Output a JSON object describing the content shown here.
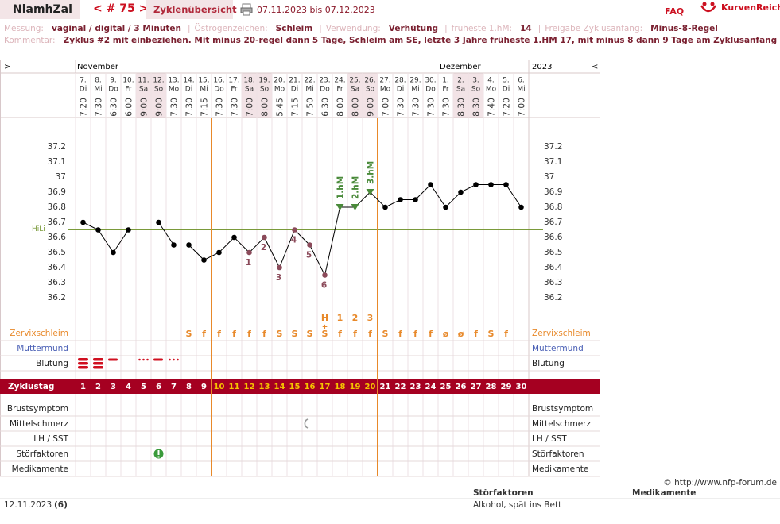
{
  "header": {
    "user": "NiamhZai",
    "cycle_nav": "< # 75 >",
    "overview": "Zyklenübersicht",
    "range": "07.11.2023 bis 07.12.2023",
    "faq": "FAQ",
    "brand": "KurvenReich"
  },
  "info": {
    "fields": [
      {
        "label": "Messung:",
        "value": "vaginal / digital / 3 Minuten"
      },
      {
        "label": "Östrogenzeichen:",
        "value": "Schleim"
      },
      {
        "label": "Verwendung:",
        "value": "Verhütung"
      },
      {
        "label": "früheste 1.hM:",
        "value": "14"
      },
      {
        "label": "Freigabe Zyklusanfang:",
        "value": "Minus-8-Regel"
      }
    ],
    "separator": "|",
    "comment_label": "Kommentar:",
    "comment": "Zyklus #2  mit einbeziehen. Mit minus 20-regel dann 5 Tage,  Schleim am SE, letzte 3 Jahre früheste 1.HM 17, mit minus 8 dann 9 Tage am Zyklusanfang"
  },
  "chart_data": {
    "type": "line",
    "nav_left": ">",
    "nav_right": "<",
    "months": [
      {
        "name": "November",
        "category": "7."
      },
      {
        "name": "Dezember",
        "category": "1."
      }
    ],
    "year": "2023",
    "categories": [
      "7.",
      "8.",
      "9.",
      "10.",
      "11.",
      "12.",
      "13.",
      "14.",
      "15.",
      "16.",
      "17.",
      "18.",
      "19.",
      "20.",
      "21.",
      "22.",
      "23.",
      "24.",
      "25.",
      "26.",
      "27.",
      "28.",
      "29.",
      "30.",
      "1.",
      "2.",
      "3.",
      "4.",
      "5.",
      "6."
    ],
    "weekdays": [
      "Di",
      "Mi",
      "Do",
      "Fr",
      "Sa",
      "So",
      "Mo",
      "Di",
      "Mi",
      "Do",
      "Fr",
      "Sa",
      "So",
      "Mo",
      "Di",
      "Mi",
      "Do",
      "Fr",
      "Sa",
      "So",
      "Mo",
      "Di",
      "Mi",
      "Do",
      "Fr",
      "Sa",
      "So",
      "Mo",
      "Di",
      "Mi"
    ],
    "times": [
      "7:20",
      "7:30",
      "6:30",
      "6:00",
      "9:00",
      "9:00",
      "7:30",
      "7:30",
      "7:15",
      "7:30",
      "7:30",
      "7:00",
      "8:00",
      "5:45",
      "7:15",
      "7:50",
      "6:30",
      "8:00",
      "8:00",
      "9:00",
      "7:00",
      "7:30",
      "7:30",
      "7:30",
      "7:30",
      "8:30",
      "8:30",
      "7:40",
      "7:20",
      "7:00"
    ],
    "shaded": [
      "11.",
      "12.",
      "18.",
      "19.",
      "25.",
      "26.",
      "2.",
      "3."
    ],
    "shade_color": "#f2e3e6",
    "values": [
      36.7,
      36.65,
      36.5,
      36.65,
      null,
      36.7,
      36.55,
      36.55,
      36.45,
      36.5,
      36.6,
      36.5,
      36.6,
      36.4,
      36.65,
      36.55,
      36.35,
      36.8,
      36.8,
      36.9,
      36.8,
      36.85,
      36.85,
      36.95,
      36.8,
      36.9,
      36.95,
      36.95,
      36.95,
      36.8
    ],
    "color": "#000000",
    "ylim": [
      36.0,
      37.4
    ],
    "yticks": [
      36.2,
      36.3,
      36.4,
      36.5,
      36.6,
      36.7,
      36.8,
      36.9,
      37,
      37.1,
      37.2
    ],
    "coverline": {
      "label": "HiLi",
      "value": 36.65,
      "color": "#7a9a3a"
    },
    "low_labels": {
      "color": "#8b4a5a",
      "items": [
        {
          "category": "18.",
          "text": "1"
        },
        {
          "category": "19.",
          "text": "2"
        },
        {
          "category": "20.",
          "text": "3"
        },
        {
          "category": "21.",
          "text": "4"
        },
        {
          "category": "22.",
          "text": "5"
        },
        {
          "category": "23.",
          "text": "6"
        }
      ]
    },
    "high_labels": {
      "color": "#4a8a3a",
      "items": [
        {
          "category": "24.",
          "text": "1.hM"
        },
        {
          "category": "25.",
          "text": "2.hM"
        },
        {
          "category": "26.",
          "text": "3.hM"
        }
      ]
    },
    "phase_lines": {
      "after": [
        "15.",
        "26."
      ],
      "color": "#e8892a"
    },
    "rows": {
      "zervix": {
        "label": "Zervixschleim",
        "color": "#e8892a",
        "values": [
          null,
          null,
          null,
          null,
          null,
          null,
          null,
          "S",
          "f",
          "f",
          "f",
          "f",
          "f",
          "S",
          "S",
          "S",
          "S",
          "f",
          "f",
          "f",
          "S",
          "f",
          "f",
          "f",
          "ø",
          "ø",
          "f",
          "S",
          "f",
          null
        ],
        "top": [
          null,
          null,
          null,
          null,
          null,
          null,
          null,
          null,
          null,
          null,
          null,
          null,
          null,
          null,
          null,
          null,
          "H",
          "1",
          "2",
          "3",
          null,
          null,
          null,
          null,
          null,
          null,
          null,
          null,
          null,
          null
        ],
        "plus": [
          null,
          null,
          null,
          null,
          null,
          null,
          null,
          null,
          null,
          null,
          null,
          null,
          null,
          null,
          null,
          null,
          "+",
          null,
          null,
          null,
          null,
          null,
          null,
          null,
          null,
          null,
          null,
          null,
          null,
          null
        ]
      },
      "muttermund": {
        "label": "Muttermund",
        "color": "#4a5fb5"
      },
      "blutung": {
        "label": "Blutung",
        "color": "#222222"
      },
      "zyklustag": {
        "label": "Zyklustag",
        "color": "#a50021",
        "highlight": "#f5c400",
        "values": [
          1,
          2,
          3,
          4,
          5,
          6,
          7,
          8,
          9,
          10,
          11,
          12,
          13,
          14,
          15,
          16,
          17,
          18,
          19,
          20,
          21,
          22,
          23,
          24,
          25,
          26,
          27,
          28,
          29,
          30
        ]
      },
      "brust": {
        "label": "Brustsymptom",
        "color": "#222222"
      },
      "mittel": {
        "label": "Mittelschmerz",
        "color": "#222222"
      },
      "lh": {
        "label": "LH / SST",
        "color": "#222222"
      },
      "stoer": {
        "label": "Störfaktoren",
        "color": "#222222"
      },
      "medi": {
        "label": "Medikamente",
        "color": "#222222"
      }
    }
  },
  "footer": {
    "copyright": "© http://www.nfp-forum.de",
    "headings": [
      "Störfaktoren",
      "Medikamente"
    ],
    "entry": {
      "date": "12.11.2023",
      "day": "(6)",
      "note": "Alkohol, spät ins Bett"
    }
  }
}
